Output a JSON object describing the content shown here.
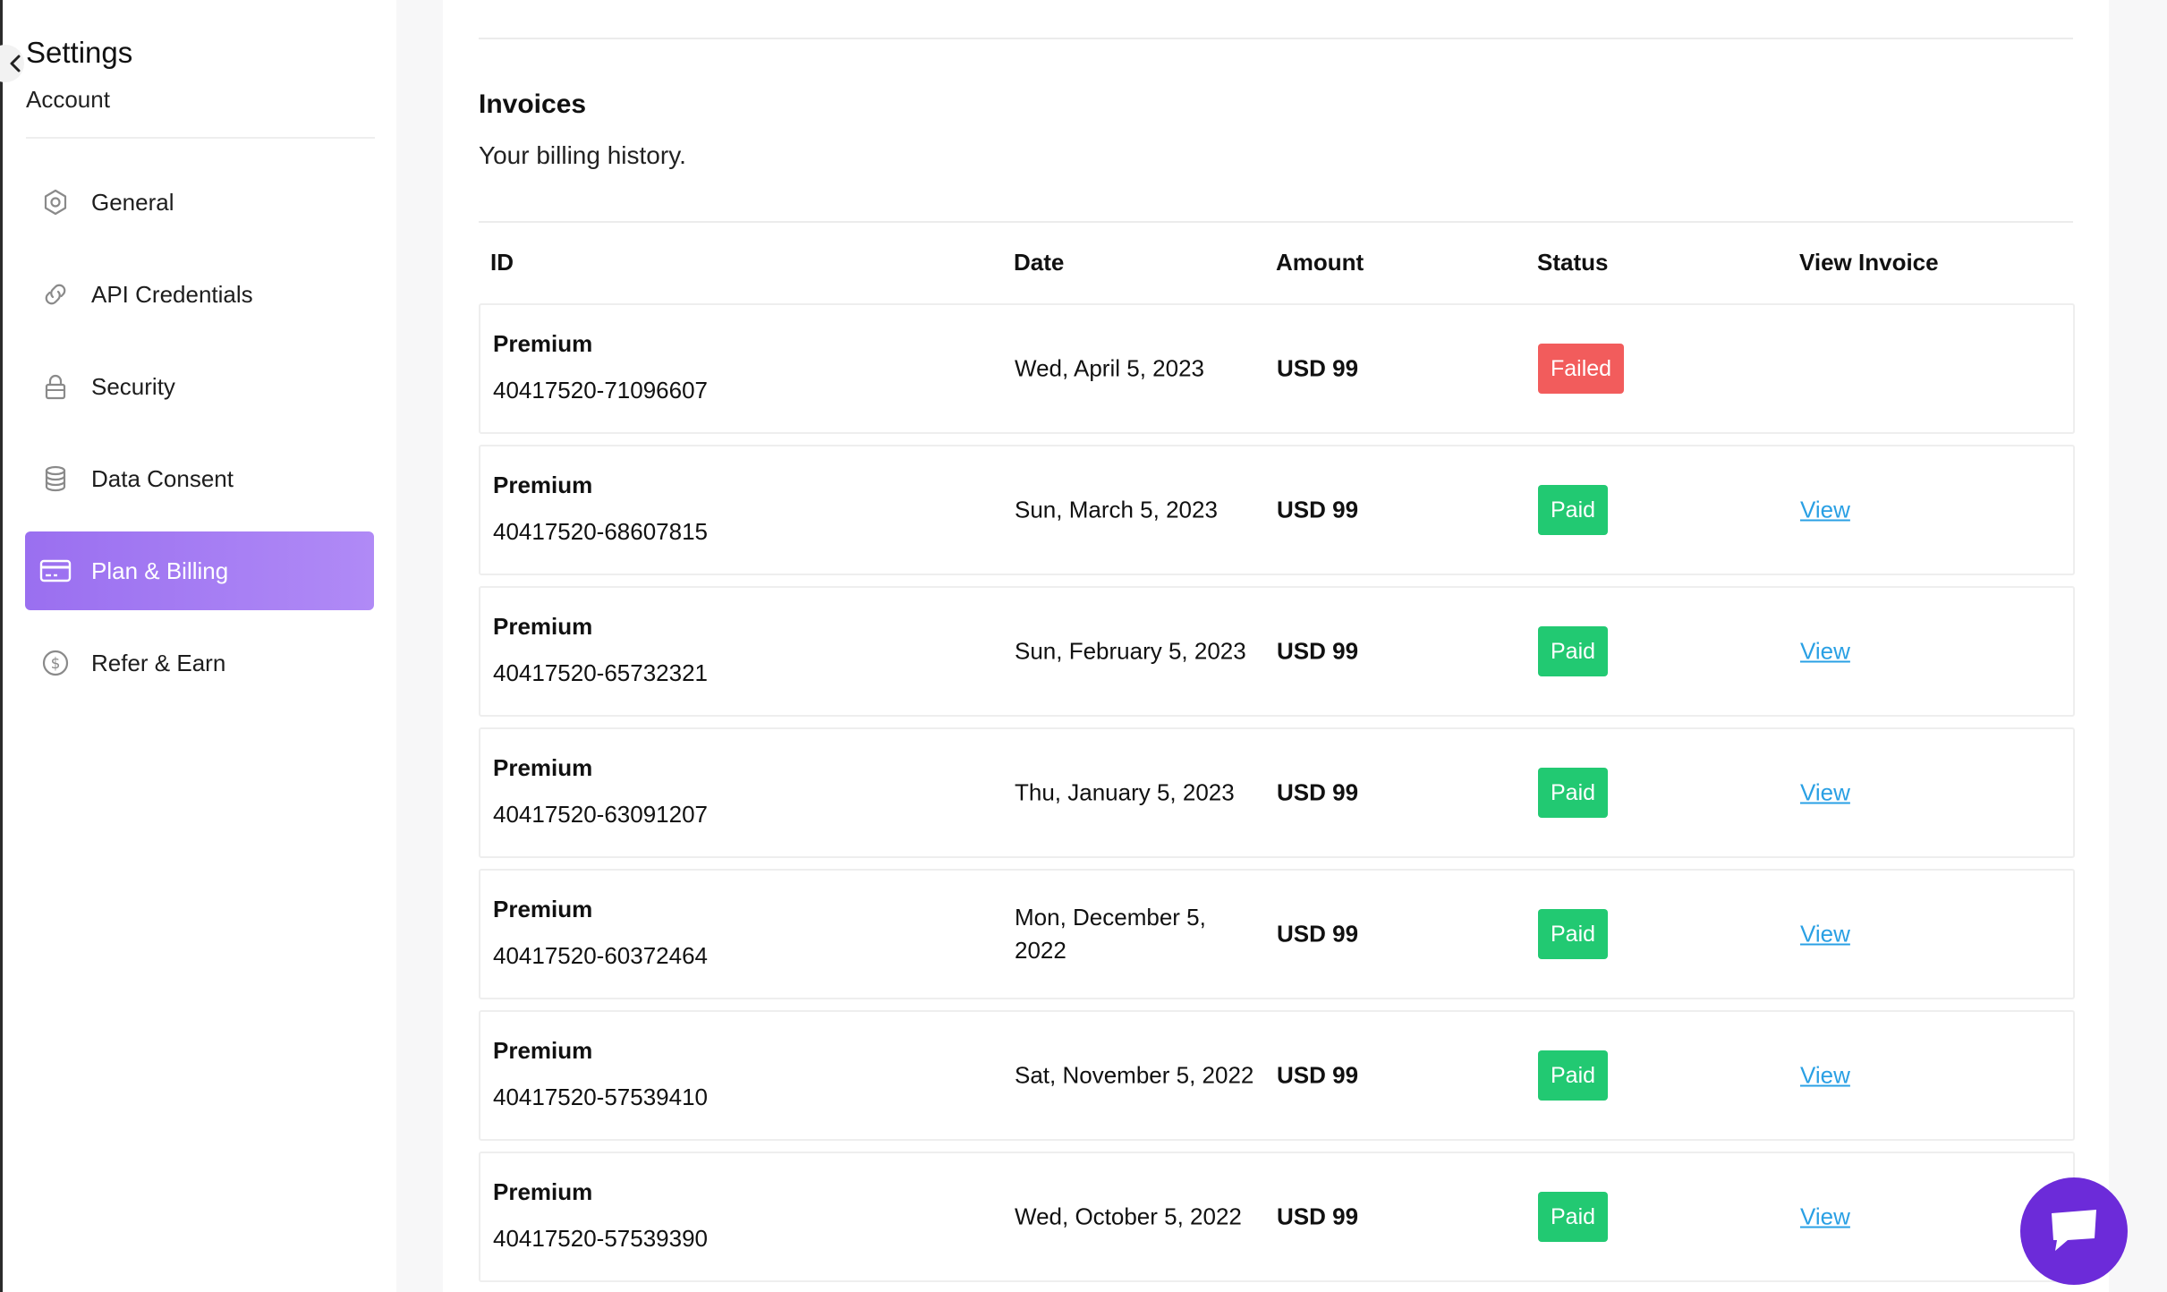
{
  "sidebar": {
    "title": "Settings",
    "subtitle": "Account",
    "items": [
      {
        "label": "General",
        "icon": "hexagon-settings-icon"
      },
      {
        "label": "API Credentials",
        "icon": "link-icon"
      },
      {
        "label": "Security",
        "icon": "lock-icon"
      },
      {
        "label": "Data Consent",
        "icon": "database-icon"
      },
      {
        "label": "Plan & Billing",
        "icon": "credit-card-icon",
        "active": true
      },
      {
        "label": "Refer & Earn",
        "icon": "dollar-circle-icon"
      }
    ]
  },
  "invoices": {
    "title": "Invoices",
    "subtitle": "Your billing history.",
    "columns": [
      "ID",
      "Date",
      "Amount",
      "Status",
      "View Invoice"
    ],
    "rows": [
      {
        "plan": "Premium",
        "id": "40417520-71096607",
        "date": "Wed, April 5, 2023",
        "amount": "USD 99",
        "status": "Failed",
        "view": ""
      },
      {
        "plan": "Premium",
        "id": "40417520-68607815",
        "date": "Sun, March 5, 2023",
        "amount": "USD 99",
        "status": "Paid",
        "view": "View"
      },
      {
        "plan": "Premium",
        "id": "40417520-65732321",
        "date": "Sun, February 5, 2023",
        "amount": "USD 99",
        "status": "Paid",
        "view": "View"
      },
      {
        "plan": "Premium",
        "id": "40417520-63091207",
        "date": "Thu, January 5, 2023",
        "amount": "USD 99",
        "status": "Paid",
        "view": "View"
      },
      {
        "plan": "Premium",
        "id": "40417520-60372464",
        "date": "Mon, December 5, 2022",
        "amount": "USD 99",
        "status": "Paid",
        "view": "View"
      },
      {
        "plan": "Premium",
        "id": "40417520-57539410",
        "date": "Sat, November 5, 2022",
        "amount": "USD 99",
        "status": "Paid",
        "view": "View"
      },
      {
        "plan": "Premium",
        "id": "40417520-57539390",
        "date": "Wed, October 5, 2022",
        "amount": "USD 99",
        "status": "Paid",
        "view": "View"
      }
    ]
  },
  "colors": {
    "accent": "#9a6ff0",
    "paid": "#22c972",
    "failed": "#f25c5c",
    "link": "#2aa0e4",
    "chat": "#6c2bd9"
  },
  "chat": {
    "icon": "chat-bubble-icon"
  }
}
